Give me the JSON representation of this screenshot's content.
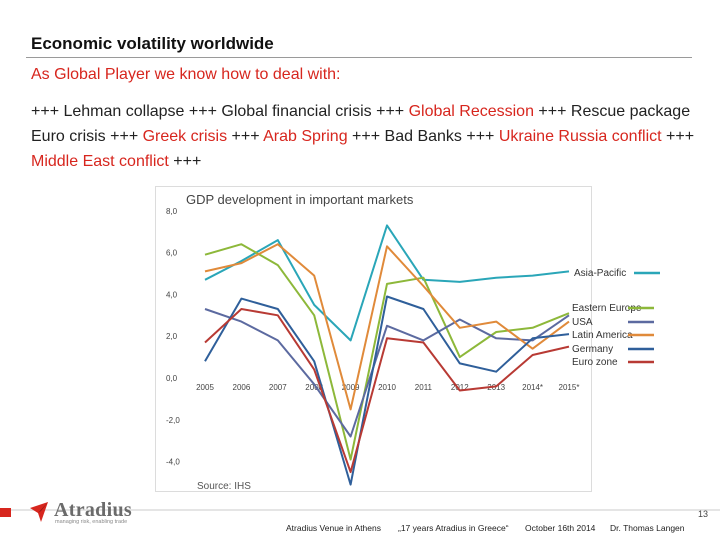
{
  "slide": {
    "title": "Economic volatility worldwide",
    "subtitle": "As Global Player we know how to deal with:",
    "news_segments": [
      {
        "text": "+++ Lehman collapse +++ Global financial crisis +++ ",
        "red": false
      },
      {
        "text": "Global Recession",
        "red": true
      },
      {
        "text": "  +++ Rescue package Euro crisis +++ ",
        "red": false
      },
      {
        "text": "Greek crisis",
        "red": true
      },
      {
        "text": " +++ ",
        "red": false
      },
      {
        "text": "Arab Spring",
        "red": true
      },
      {
        "text": " +++ Bad Banks +++ ",
        "red": false
      },
      {
        "text": "Ukraine Russia conflict",
        "red": true
      },
      {
        "text": " +++ ",
        "red": false
      },
      {
        "text": "Middle East conflict",
        "red": true
      },
      {
        "text": " +++",
        "red": false
      }
    ]
  },
  "chart_data": {
    "type": "line",
    "title": "GDP development  in important markets",
    "source": "Source: IHS",
    "categories": [
      "2005",
      "2006",
      "2007",
      "2008",
      "2009",
      "2010",
      "2011",
      "2012",
      "2013",
      "2014*",
      "2015*"
    ],
    "y_ticks": [
      "8,0",
      "6,0",
      "4,0",
      "2,0",
      "0,0",
      "-2,0",
      "-4,0"
    ],
    "ylim": [
      -4,
      8
    ],
    "grid": false,
    "legend_position": "right",
    "series": [
      {
        "name": "Asia-Pacific",
        "color": "#2aa6b8",
        "values": [
          4.7,
          5.6,
          6.6,
          3.5,
          1.8,
          7.3,
          4.7,
          4.6,
          4.8,
          4.9,
          5.1
        ]
      },
      {
        "name": "Eastern Europe",
        "color": "#8db83a",
        "values": [
          5.9,
          6.4,
          5.4,
          3.0,
          -3.9,
          4.5,
          4.8,
          1.0,
          2.2,
          2.4,
          3.1
        ]
      },
      {
        "name": "USA",
        "color": "#5c6aa0",
        "values": [
          3.3,
          2.7,
          1.8,
          -0.3,
          -2.8,
          2.5,
          1.8,
          2.8,
          1.9,
          1.8,
          3.0
        ]
      },
      {
        "name": "Latin America",
        "color": "#e08a3a",
        "values": [
          5.1,
          5.5,
          6.4,
          4.9,
          -1.5,
          6.3,
          4.4,
          2.4,
          2.7,
          1.4,
          2.7
        ]
      },
      {
        "name": "Germany",
        "color": "#2f5f9a",
        "values": [
          0.8,
          3.8,
          3.3,
          0.8,
          -5.1,
          3.9,
          3.3,
          0.7,
          0.3,
          1.9,
          2.1
        ]
      },
      {
        "name": "Euro zone",
        "color": "#b83a34",
        "values": [
          1.7,
          3.3,
          3.0,
          0.4,
          -4.5,
          1.9,
          1.7,
          -0.6,
          -0.4,
          1.1,
          1.5
        ]
      }
    ]
  },
  "footer": {
    "brand": "Atradius",
    "tagline": "managing risk, enabling trade",
    "page_number": "13",
    "event": "Atradius Venue in Athens",
    "talk": "„17 years Atradius in Greece“",
    "date": "October 16th 2014",
    "speaker": "Dr. Thomas Langen",
    "accent_color": "#d7261e"
  }
}
